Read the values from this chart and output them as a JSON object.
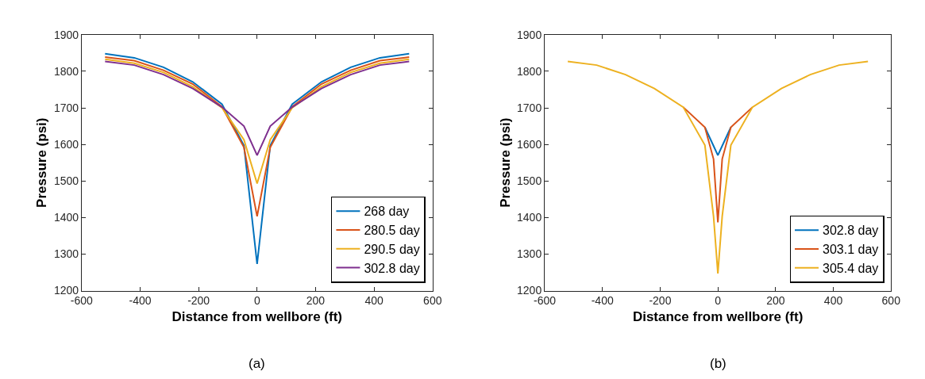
{
  "chart_data": [
    {
      "type": "line",
      "xlabel": "Distance from wellbore (ft)",
      "ylabel": "Pressure (psi)",
      "annotations": [
        "(a)"
      ],
      "legend": "bottom right",
      "x": [
        -520,
        -420,
        -320,
        -220,
        -120,
        -45,
        0,
        45,
        120,
        220,
        320,
        420,
        520
      ],
      "xlim": [
        -600,
        600
      ],
      "xticks": [
        -600,
        -400,
        -200,
        0,
        200,
        400,
        600
      ],
      "ylim": [
        1200,
        1900
      ],
      "yticks": [
        1200,
        1300,
        1400,
        1500,
        1600,
        1700,
        1800,
        1900
      ],
      "series": [
        {
          "name": "268 day",
          "color": "#0072bd",
          "values": [
            1848,
            1837,
            1811,
            1771,
            1710,
            1597,
            1273,
            1597,
            1710,
            1771,
            1811,
            1837,
            1848
          ]
        },
        {
          "name": "280.5 day",
          "color": "#d95319",
          "values": [
            1839,
            1829,
            1803,
            1765,
            1703,
            1592,
            1403,
            1592,
            1703,
            1765,
            1803,
            1829,
            1839
          ]
        },
        {
          "name": "290.5 day",
          "color": "#edb120",
          "values": [
            1833,
            1822,
            1797,
            1758,
            1700,
            1613,
            1493,
            1613,
            1700,
            1758,
            1797,
            1822,
            1833
          ]
        },
        {
          "name": "302.8 day",
          "color": "#7e2f8e",
          "values": [
            1827,
            1817,
            1791,
            1753,
            1702,
            1650,
            1570,
            1650,
            1702,
            1753,
            1791,
            1817,
            1827
          ]
        }
      ]
    },
    {
      "type": "line",
      "xlabel": "Distance from wellbore (ft)",
      "ylabel": "Pressure (psi)",
      "annotations": [
        "(b)"
      ],
      "legend": "bottom right",
      "x": [
        -520,
        -420,
        -320,
        -220,
        -120,
        -45,
        -15,
        0,
        15,
        45,
        120,
        220,
        320,
        420,
        520
      ],
      "xlim": [
        -600,
        600
      ],
      "xticks": [
        -600,
        -400,
        -200,
        0,
        200,
        400,
        600
      ],
      "ylim": [
        1200,
        1900
      ],
      "yticks": [
        1200,
        1300,
        1400,
        1500,
        1600,
        1700,
        1800,
        1900
      ],
      "series": [
        {
          "name": "302.8 day",
          "color": "#0072bd",
          "values": [
            null,
            null,
            null,
            null,
            null,
            1647,
            1596,
            1570,
            1596,
            1647,
            null,
            null,
            null,
            null,
            null
          ]
        },
        {
          "name": "303.1 day",
          "color": "#d95319",
          "values": [
            null,
            null,
            null,
            null,
            1702,
            1647,
            1560,
            1387,
            1560,
            1647,
            1702,
            null,
            null,
            null,
            null
          ]
        },
        {
          "name": "305.4 day",
          "color": "#edb120",
          "values": [
            1827,
            1817,
            1791,
            1753,
            1702,
            1598,
            1403,
            1247,
            1403,
            1598,
            1702,
            1753,
            1791,
            1817,
            1827
          ]
        }
      ]
    }
  ]
}
